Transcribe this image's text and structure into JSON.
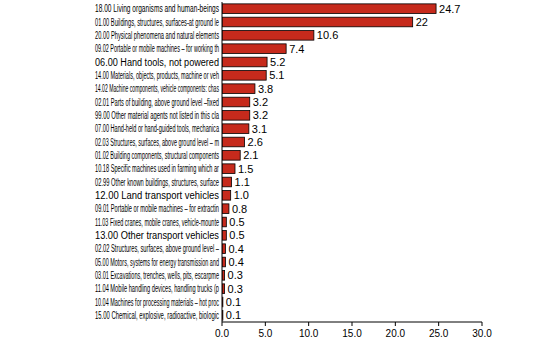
{
  "chart_data": {
    "type": "bar",
    "orientation": "horizontal",
    "data_labels": true,
    "grid": false,
    "color": "#c62a1c",
    "categories": [
      "18.00 Living organisms and human-beings",
      "01.00 Buildings, structures, surfaces-at ground le",
      "20.00 Physical phenomena and natural elements",
      "09.02 Portable or mobile machines – for working th",
      "06.00 Hand tools, not powered",
      "14.00 Materials, objects, products, machine or veh",
      "14.02 Machine components, vehicle components: chas",
      "02.01 Parts of building, above ground level –fixed",
      "99.00 Other material agents not listed in this cla",
      "07.00 Hand-held or hand-guided tools, mechanica",
      "02.03 Structures, surfaces, above ground level – m",
      "01.02 Building components, structural components",
      "10.18 Specific machines used in farming which ar",
      "02.99 Other known buildings, structures, surface",
      "12.00 Land transport vehicles",
      "09.01 Portable or mobile machines – for extractin",
      "11.03 Fixed cranes, mobile cranes, vehicle-mounte",
      "13.00 Other transport vehicles",
      "02.02 Structures, surfaces, above ground level –",
      "05.00 Motors, systems for energy transmission and",
      "03.01 Excavations, trenches, wells, pits, escarpme",
      "11.04 Mobile handling devices, handling trucks (p",
      "10.04 Machines for processing materials – hot proc",
      "15.00 Chemical, explosive, radioactive, biologic"
    ],
    "values": [
      24.7,
      22,
      10.6,
      7.4,
      5.2,
      5.1,
      3.8,
      3.2,
      3.2,
      3.1,
      2.6,
      2.1,
      1.5,
      1.1,
      1.0,
      0.8,
      0.5,
      0.5,
      0.4,
      0.4,
      0.3,
      0.3,
      0.1,
      0.1
    ],
    "value_labels": [
      "24.7",
      "22",
      "10.6",
      "7.4",
      "5.2",
      "5.1",
      "3.8",
      "3.2",
      "3.2",
      "3.1",
      "2.6",
      "2.1",
      "1.5",
      "1.1",
      "1.0",
      "0.8",
      "0.5",
      "0.5",
      "0.4",
      "0.4",
      "0.3",
      "0.3",
      "0.1",
      "0.1"
    ],
    "xlim": [
      0,
      30
    ],
    "xticks": [
      {
        "value": 0,
        "label": "0.0"
      },
      {
        "value": 5,
        "label": "5.0"
      },
      {
        "value": 10,
        "label": "10.0"
      },
      {
        "value": 15,
        "label": "15.0"
      },
      {
        "value": 20,
        "label": "20.0"
      },
      {
        "value": 25,
        "label": "25.0"
      },
      {
        "value": 30,
        "label": "30.0"
      }
    ]
  }
}
